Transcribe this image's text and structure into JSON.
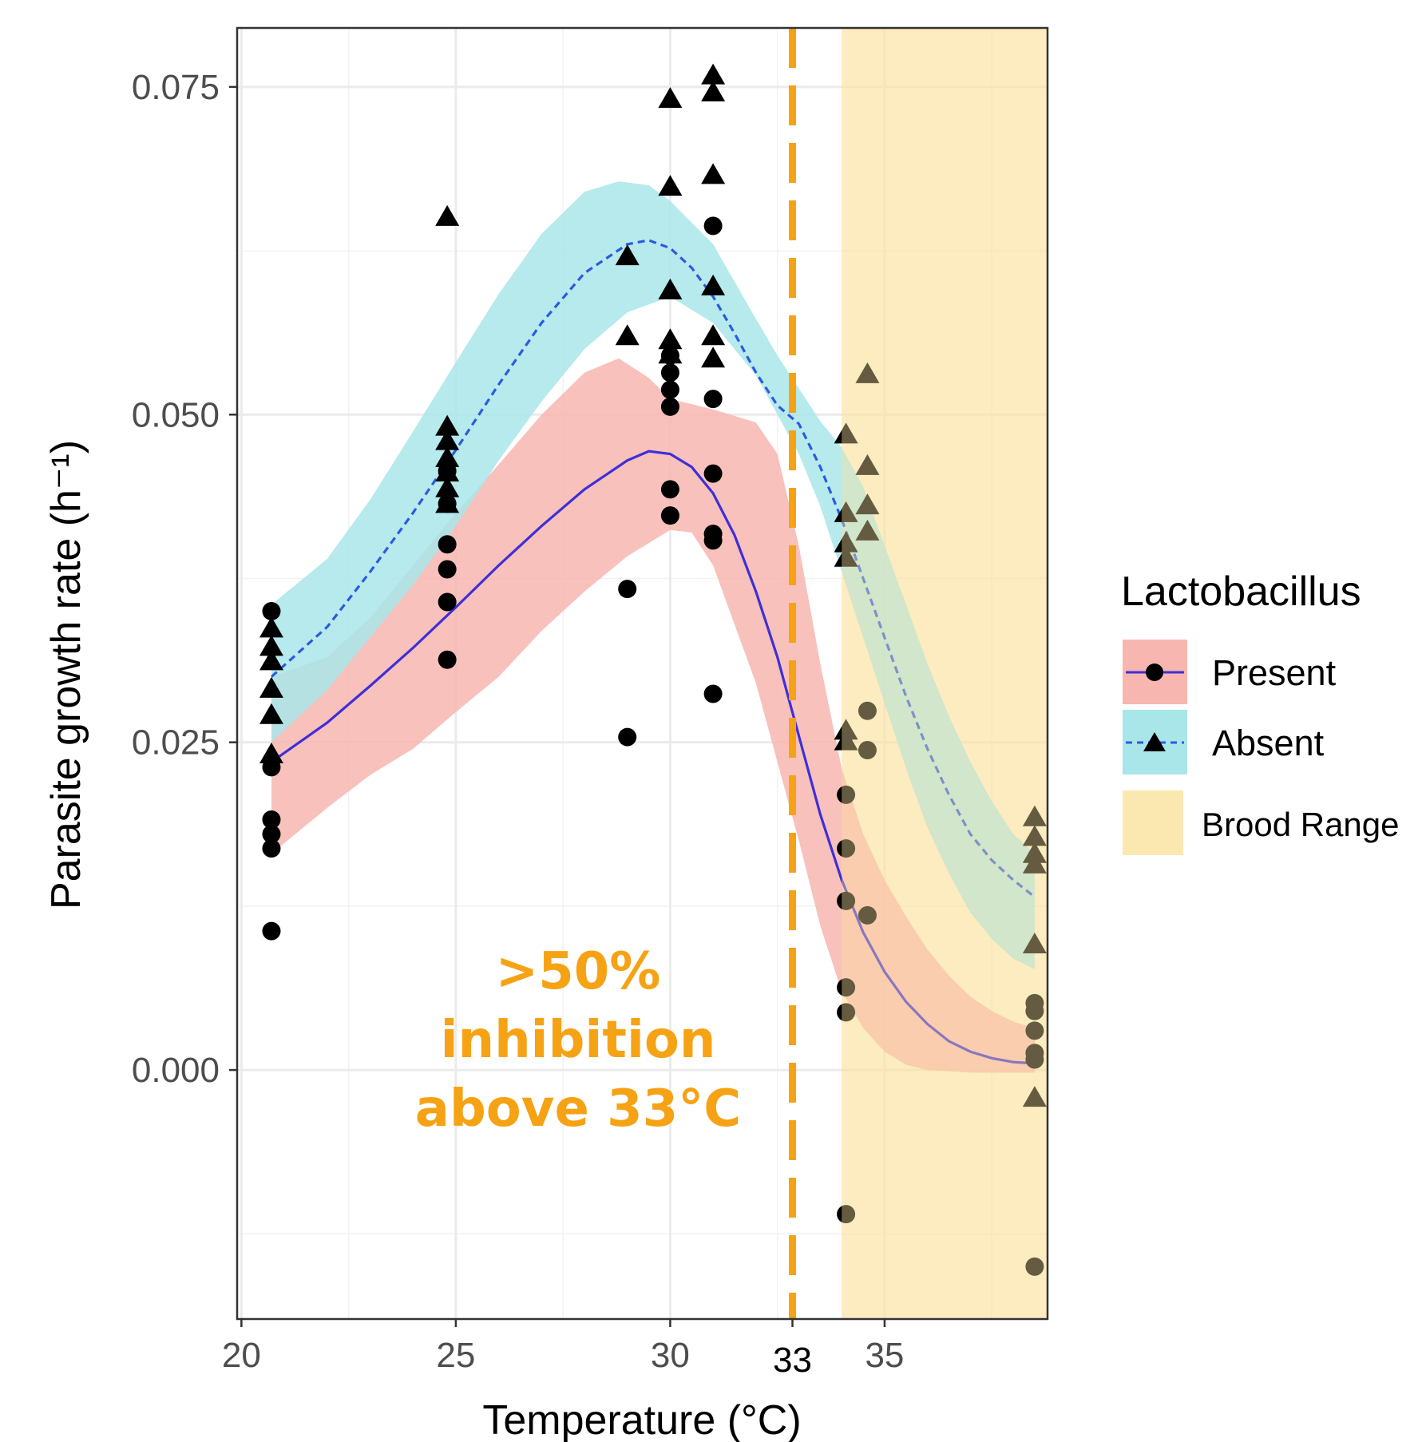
{
  "chart_data": {
    "type": "scatter",
    "title": "",
    "xlabel": "Temperature (°C)",
    "ylabel": "Parasite growth rate (h⁻¹)",
    "xlim": [
      19.9,
      38.8
    ],
    "ylim": [
      -0.019,
      0.0795
    ],
    "xticks": [
      20,
      25,
      30,
      35
    ],
    "xtick_labels": [
      "20",
      "25",
      "30",
      "35"
    ],
    "yticks": [
      0.0,
      0.025,
      0.05,
      0.075
    ],
    "ytick_labels": [
      "0.000",
      "0.025",
      "0.050",
      "0.075"
    ],
    "grid": true,
    "legend": {
      "title": "Lactobacillus",
      "position": "right"
    },
    "threshold": {
      "x": 33,
      "label": "33",
      "color": "#f5a314",
      "annotation_lines": [
        ">50%",
        "inhibition",
        "above 33°C"
      ]
    },
    "shaded_region": {
      "name": "Brood Range",
      "x": [
        34,
        38.8
      ],
      "color": "#fbe3a0"
    },
    "series": [
      {
        "name": "Present",
        "marker": "circle",
        "line_color": "#3f2fd6",
        "band_color": "#f7b6b0",
        "points": [
          [
            20.7,
            0.035
          ],
          [
            20.7,
            0.0231
          ],
          [
            20.7,
            0.0191
          ],
          [
            20.7,
            0.018
          ],
          [
            20.7,
            0.0169
          ],
          [
            20.7,
            0.0106
          ],
          [
            24.8,
            0.0457
          ],
          [
            24.8,
            0.0432
          ],
          [
            24.8,
            0.0401
          ],
          [
            24.8,
            0.0382
          ],
          [
            24.8,
            0.0357
          ],
          [
            24.8,
            0.0313
          ],
          [
            29.0,
            0.0367
          ],
          [
            29.0,
            0.0254
          ],
          [
            30.0,
            0.0545
          ],
          [
            30.0,
            0.0532
          ],
          [
            30.0,
            0.0519
          ],
          [
            30.0,
            0.0506
          ],
          [
            30.0,
            0.0443
          ],
          [
            30.0,
            0.0423
          ],
          [
            31.0,
            0.0644
          ],
          [
            31.0,
            0.0512
          ],
          [
            31.0,
            0.0455
          ],
          [
            31.0,
            0.0409
          ],
          [
            31.0,
            0.0404
          ],
          [
            31.0,
            0.0287
          ],
          [
            34.1,
            0.021
          ],
          [
            34.1,
            0.0169
          ],
          [
            34.1,
            0.0129
          ],
          [
            34.1,
            0.0063
          ],
          [
            34.1,
            0.0044
          ],
          [
            34.1,
            -0.011
          ],
          [
            34.6,
            0.0274
          ],
          [
            34.6,
            0.0244
          ],
          [
            34.6,
            0.0118
          ],
          [
            38.5,
            0.0051
          ],
          [
            38.5,
            0.0045
          ],
          [
            38.5,
            0.003
          ],
          [
            38.5,
            0.0013
          ],
          [
            38.5,
            0.0008
          ],
          [
            38.5,
            -0.015
          ]
        ],
        "fit": [
          [
            20.7,
            0.0235
          ],
          [
            22,
            0.0265
          ],
          [
            23,
            0.0293
          ],
          [
            24,
            0.0322
          ],
          [
            25,
            0.0353
          ],
          [
            26,
            0.0385
          ],
          [
            27,
            0.0415
          ],
          [
            28,
            0.0443
          ],
          [
            29,
            0.0465
          ],
          [
            29.5,
            0.0472
          ],
          [
            30,
            0.047
          ],
          [
            30.5,
            0.046
          ],
          [
            31,
            0.044
          ],
          [
            31.5,
            0.0408
          ],
          [
            32,
            0.0365
          ],
          [
            32.5,
            0.0315
          ],
          [
            33,
            0.0255
          ],
          [
            33.5,
            0.0195
          ],
          [
            34,
            0.0145
          ],
          [
            34.5,
            0.0105
          ],
          [
            35,
            0.0075
          ],
          [
            35.5,
            0.0052
          ],
          [
            36,
            0.0035
          ],
          [
            36.5,
            0.0022
          ],
          [
            37,
            0.0014
          ],
          [
            37.5,
            0.0009
          ],
          [
            38,
            0.0006
          ],
          [
            38.5,
            0.0005
          ]
        ],
        "band_upper": [
          [
            20.7,
            0.03
          ],
          [
            22,
            0.0315
          ],
          [
            23,
            0.0345
          ],
          [
            24,
            0.0385
          ],
          [
            25,
            0.0425
          ],
          [
            26,
            0.0462
          ],
          [
            27,
            0.05
          ],
          [
            28,
            0.0532
          ],
          [
            28.8,
            0.0543
          ],
          [
            29.5,
            0.0528
          ],
          [
            30,
            0.0512
          ],
          [
            31,
            0.0504
          ],
          [
            32,
            0.0494
          ],
          [
            32.5,
            0.047
          ],
          [
            33,
            0.04
          ],
          [
            33.5,
            0.031
          ],
          [
            34,
            0.023
          ],
          [
            34.5,
            0.018
          ],
          [
            35,
            0.0145
          ],
          [
            35.5,
            0.0117
          ],
          [
            36,
            0.0092
          ],
          [
            36.5,
            0.0072
          ],
          [
            37,
            0.0056
          ],
          [
            37.5,
            0.0045
          ],
          [
            38,
            0.0037
          ],
          [
            38.5,
            0.0032
          ]
        ],
        "band_lower": [
          [
            20.7,
            0.0165
          ],
          [
            22,
            0.02
          ],
          [
            23,
            0.0225
          ],
          [
            24,
            0.0245
          ],
          [
            25,
            0.0273
          ],
          [
            26,
            0.03
          ],
          [
            27,
            0.0335
          ],
          [
            28,
            0.0365
          ],
          [
            29,
            0.0392
          ],
          [
            30,
            0.0412
          ],
          [
            30.5,
            0.041
          ],
          [
            31,
            0.0385
          ],
          [
            32,
            0.0295
          ],
          [
            33,
            0.0175
          ],
          [
            33.5,
            0.011
          ],
          [
            34,
            0.006
          ],
          [
            34.5,
            0.0032
          ],
          [
            35,
            0.0014
          ],
          [
            35.5,
            0.0004
          ],
          [
            36,
            0.0
          ],
          [
            37,
            -0.0002
          ],
          [
            38.5,
            -0.0002
          ]
        ]
      },
      {
        "name": "Absent",
        "marker": "triangle",
        "line_color": "#2b5be0",
        "band_color": "#a9e6ea",
        "points": [
          [
            20.7,
            0.0336
          ],
          [
            20.7,
            0.0322
          ],
          [
            20.7,
            0.0311
          ],
          [
            20.7,
            0.029
          ],
          [
            20.7,
            0.027
          ],
          [
            20.7,
            0.024
          ],
          [
            24.8,
            0.065
          ],
          [
            24.8,
            0.049
          ],
          [
            24.8,
            0.0479
          ],
          [
            24.8,
            0.0466
          ],
          [
            24.8,
            0.0455
          ],
          [
            24.8,
            0.0443
          ],
          [
            24.8,
            0.0431
          ],
          [
            29.0,
            0.062
          ],
          [
            29.0,
            0.0559
          ],
          [
            30.0,
            0.074
          ],
          [
            30.0,
            0.0673
          ],
          [
            30.0,
            0.0594
          ],
          [
            30.0,
            0.0556
          ],
          [
            30.0,
            0.0545
          ],
          [
            31.0,
            0.0758
          ],
          [
            31.0,
            0.0745
          ],
          [
            31.0,
            0.0682
          ],
          [
            31.0,
            0.0597
          ],
          [
            31.0,
            0.0559
          ],
          [
            31.0,
            0.0542
          ],
          [
            34.1,
            0.0484
          ],
          [
            34.1,
            0.0424
          ],
          [
            34.1,
            0.0401
          ],
          [
            34.1,
            0.039
          ],
          [
            34.1,
            0.0258
          ],
          [
            34.1,
            0.025
          ],
          [
            34.6,
            0.053
          ],
          [
            34.6,
            0.046
          ],
          [
            34.6,
            0.043
          ],
          [
            34.6,
            0.041
          ],
          [
            38.5,
            0.0192
          ],
          [
            38.5,
            0.0177
          ],
          [
            38.5,
            0.0164
          ],
          [
            38.5,
            0.0156
          ],
          [
            38.5,
            0.0095
          ],
          [
            38.5,
            -0.0022
          ]
        ],
        "fit": [
          [
            20.7,
            0.03
          ],
          [
            22,
            0.0338
          ],
          [
            23,
            0.038
          ],
          [
            24,
            0.0425
          ],
          [
            25,
            0.0473
          ],
          [
            26,
            0.0523
          ],
          [
            27,
            0.057
          ],
          [
            28,
            0.0608
          ],
          [
            29,
            0.063
          ],
          [
            29.5,
            0.0633
          ],
          [
            30,
            0.0627
          ],
          [
            30.5,
            0.0612
          ],
          [
            31,
            0.059
          ],
          [
            31.5,
            0.0562
          ],
          [
            32,
            0.0532
          ],
          [
            32.5,
            0.0507
          ],
          [
            33,
            0.0493
          ],
          [
            33.5,
            0.046
          ],
          [
            34,
            0.042
          ],
          [
            34.5,
            0.0375
          ],
          [
            35,
            0.033
          ],
          [
            35.5,
            0.0285
          ],
          [
            36,
            0.0245
          ],
          [
            36.5,
            0.021
          ],
          [
            37,
            0.018
          ],
          [
            37.5,
            0.016
          ],
          [
            38,
            0.0145
          ],
          [
            38.5,
            0.0132
          ]
        ],
        "band_upper": [
          [
            20.7,
            0.0355
          ],
          [
            22,
            0.039
          ],
          [
            23,
            0.0435
          ],
          [
            24,
            0.0487
          ],
          [
            25,
            0.054
          ],
          [
            26,
            0.0592
          ],
          [
            27,
            0.0638
          ],
          [
            28,
            0.067
          ],
          [
            28.8,
            0.0678
          ],
          [
            29.5,
            0.0675
          ],
          [
            30,
            0.0663
          ],
          [
            31,
            0.063
          ],
          [
            32,
            0.0573
          ],
          [
            32.5,
            0.0545
          ],
          [
            33,
            0.052
          ],
          [
            33.5,
            0.0495
          ],
          [
            34,
            0.0475
          ],
          [
            34.5,
            0.0445
          ],
          [
            35,
            0.04
          ],
          [
            35.5,
            0.0355
          ],
          [
            36,
            0.031
          ],
          [
            36.5,
            0.027
          ],
          [
            37,
            0.0235
          ],
          [
            37.5,
            0.0205
          ],
          [
            38,
            0.018
          ],
          [
            38.5,
            0.0165
          ]
        ],
        "band_lower": [
          [
            20.7,
            0.025
          ],
          [
            22,
            0.029
          ],
          [
            23,
            0.033
          ],
          [
            24,
            0.037
          ],
          [
            25,
            0.0415
          ],
          [
            26,
            0.0465
          ],
          [
            27,
            0.051
          ],
          [
            28,
            0.055
          ],
          [
            29,
            0.0578
          ],
          [
            30,
            0.059
          ],
          [
            31,
            0.057
          ],
          [
            32,
            0.053
          ],
          [
            32.5,
            0.05
          ],
          [
            33,
            0.047
          ],
          [
            33.5,
            0.043
          ],
          [
            34,
            0.038
          ],
          [
            34.5,
            0.033
          ],
          [
            35,
            0.028
          ],
          [
            35.5,
            0.023
          ],
          [
            36,
            0.0185
          ],
          [
            36.5,
            0.015
          ],
          [
            37,
            0.012
          ],
          [
            37.5,
            0.01
          ],
          [
            38,
            0.0085
          ],
          [
            38.5,
            0.0077
          ]
        ]
      }
    ]
  }
}
